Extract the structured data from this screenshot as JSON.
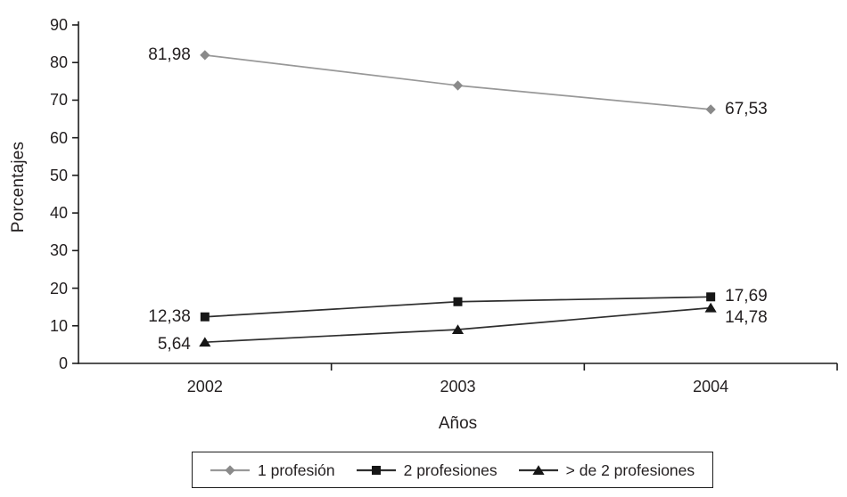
{
  "page": {
    "background_color": "#ffffff",
    "text_color": "#231f20"
  },
  "chart_data": {
    "type": "line",
    "title": "",
    "xlabel": "Años",
    "ylabel": "Porcentajes",
    "categories": [
      "2002",
      "2003",
      "2004"
    ],
    "ylim": [
      0,
      90
    ],
    "yticks": [
      90,
      80,
      70,
      60,
      50,
      40,
      30,
      20,
      10,
      0
    ],
    "grid": false,
    "legend_position": "bottom-center",
    "decimal_separator": ",",
    "axis_color": "#1c1c1c",
    "series": [
      {
        "name": "1 profesión",
        "marker": "diamond",
        "marker_color": "#8a8a8a",
        "line_color": "#989898",
        "values": [
          81.98,
          73.9,
          67.53
        ],
        "point_labels": [
          {
            "index": 0,
            "text": "81,98",
            "side": "left",
            "dy": 0
          },
          {
            "index": 2,
            "text": "67,53",
            "side": "right",
            "dy": 0
          }
        ]
      },
      {
        "name": "2 profesiones",
        "marker": "square",
        "marker_color": "#161616",
        "line_color": "#2f2f2f",
        "values": [
          12.38,
          16.4,
          17.69
        ],
        "point_labels": [
          {
            "index": 0,
            "text": "12,38",
            "side": "left",
            "dy": 0
          },
          {
            "index": 2,
            "text": "17,69",
            "side": "right",
            "dy": 0
          }
        ]
      },
      {
        "name": "> de 2 profesiones",
        "marker": "triangle",
        "marker_color": "#161616",
        "line_color": "#2f2f2f",
        "values": [
          5.64,
          9.0,
          14.78
        ],
        "point_labels": [
          {
            "index": 0,
            "text": "5,64",
            "side": "left",
            "dy": 3
          },
          {
            "index": 2,
            "text": "14,78",
            "side": "right",
            "dy": 11
          }
        ]
      }
    ]
  }
}
